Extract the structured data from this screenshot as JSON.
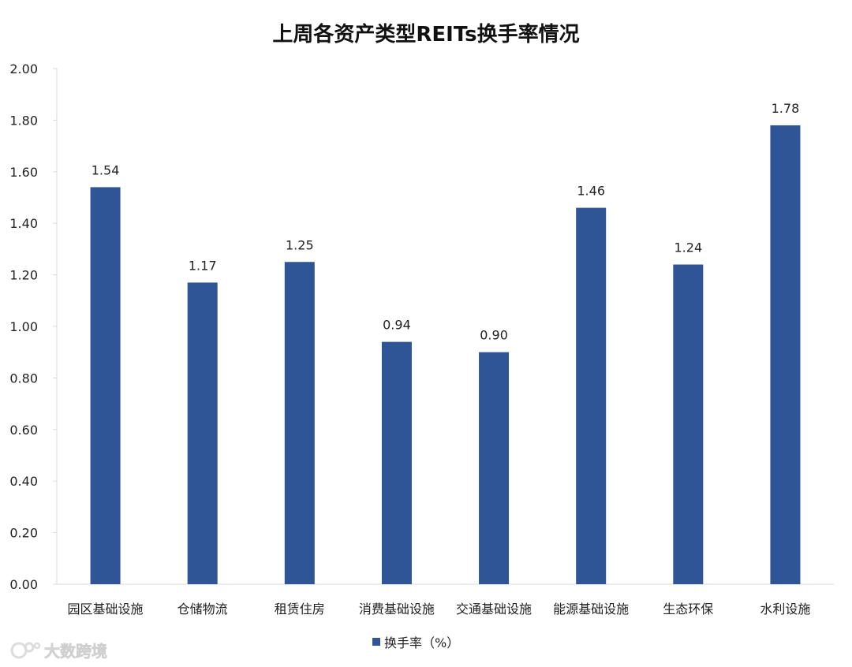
{
  "chart_data": {
    "type": "bar",
    "title": "上周各资产类型REITs换手率情况",
    "categories": [
      "园区基础设施",
      "仓储物流",
      "租赁住房",
      "消费基础设施",
      "交通基础设施",
      "能源基础设施",
      "生态环保",
      "水利设施"
    ],
    "series": [
      {
        "name": "换手率（%）",
        "values": [
          1.54,
          1.17,
          1.25,
          0.94,
          0.9,
          1.46,
          1.24,
          1.78
        ],
        "value_labels": [
          "1.54",
          "1.17",
          "1.25",
          "0.94",
          "0.90",
          "1.46",
          "1.24",
          "1.78"
        ]
      }
    ],
    "ylim": [
      0,
      2.0
    ],
    "yticks": [
      "0.00",
      "0.20",
      "0.40",
      "0.60",
      "0.80",
      "1.00",
      "1.20",
      "1.40",
      "1.60",
      "1.80",
      "2.00"
    ],
    "grid": false,
    "legend_position": "bottom",
    "colors": {
      "bar": "#2F5597",
      "axis": "#D9D9D9"
    }
  },
  "watermark": {
    "text": "大数跨境",
    "icon": "brand-logo-icon"
  }
}
